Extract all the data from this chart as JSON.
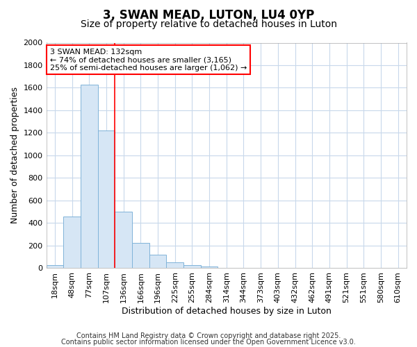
{
  "title1": "3, SWAN MEAD, LUTON, LU4 0YP",
  "title2": "Size of property relative to detached houses in Luton",
  "xlabel": "Distribution of detached houses by size in Luton",
  "ylabel": "Number of detached properties",
  "categories": [
    "18sqm",
    "48sqm",
    "77sqm",
    "107sqm",
    "136sqm",
    "166sqm",
    "196sqm",
    "225sqm",
    "255sqm",
    "284sqm",
    "314sqm",
    "344sqm",
    "373sqm",
    "403sqm",
    "432sqm",
    "462sqm",
    "491sqm",
    "521sqm",
    "551sqm",
    "580sqm",
    "610sqm"
  ],
  "values": [
    30,
    460,
    1630,
    1220,
    500,
    225,
    120,
    50,
    25,
    15,
    5,
    0,
    0,
    0,
    0,
    0,
    0,
    0,
    0,
    0,
    0
  ],
  "bar_color": "#d6e6f5",
  "bar_edgecolor": "#7fb3d9",
  "vline_color": "red",
  "vline_x": 3.5,
  "annotation_line1": "3 SWAN MEAD: 132sqm",
  "annotation_line2": "← 74% of detached houses are smaller (3,165)",
  "annotation_line3": "25% of semi-detached houses are larger (1,062) →",
  "annotation_box_facecolor": "white",
  "annotation_box_edgecolor": "red",
  "ylim": [
    0,
    2000
  ],
  "yticks": [
    0,
    200,
    400,
    600,
    800,
    1000,
    1200,
    1400,
    1600,
    1800,
    2000
  ],
  "footer1": "Contains HM Land Registry data © Crown copyright and database right 2025.",
  "footer2": "Contains public sector information licensed under the Open Government Licence v3.0.",
  "bg_color": "#ffffff",
  "grid_color": "#c8d8eb",
  "title1_fontsize": 12,
  "title2_fontsize": 10,
  "ylabel_fontsize": 9,
  "xlabel_fontsize": 9,
  "tick_fontsize": 8,
  "footer_fontsize": 7,
  "ann_fontsize": 8
}
